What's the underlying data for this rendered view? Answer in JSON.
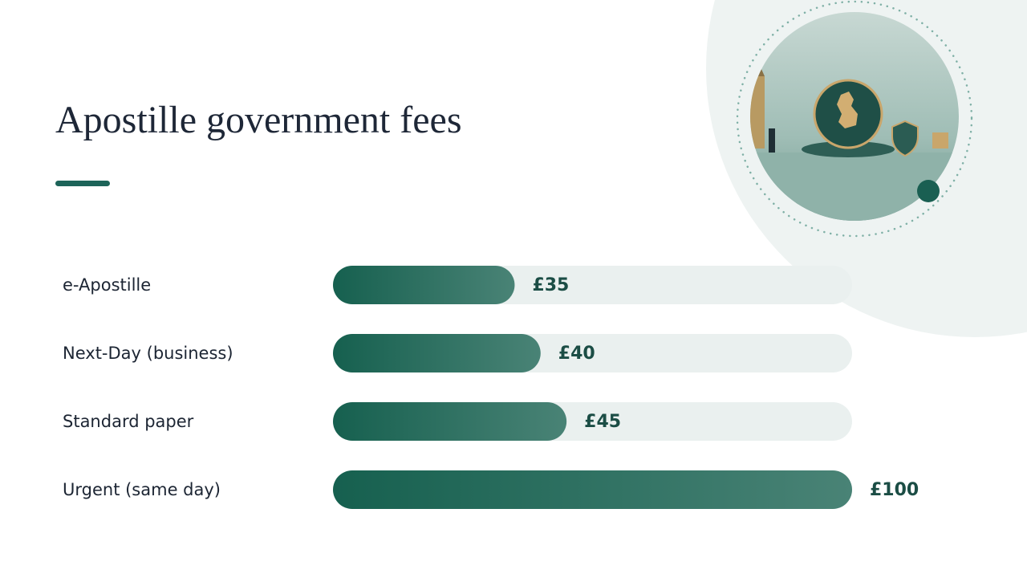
{
  "chart_data": {
    "type": "bar",
    "orientation": "horizontal",
    "title": "Apostille government fees",
    "categories": [
      "e-Apostille",
      "Next-Day (business)",
      "Standard paper",
      "Urgent (same day)"
    ],
    "values": [
      35,
      40,
      45,
      100
    ],
    "value_labels": [
      "£35",
      "£40",
      "£45",
      "£100"
    ],
    "xlim": [
      0,
      100
    ],
    "color": "#16604f"
  }
}
